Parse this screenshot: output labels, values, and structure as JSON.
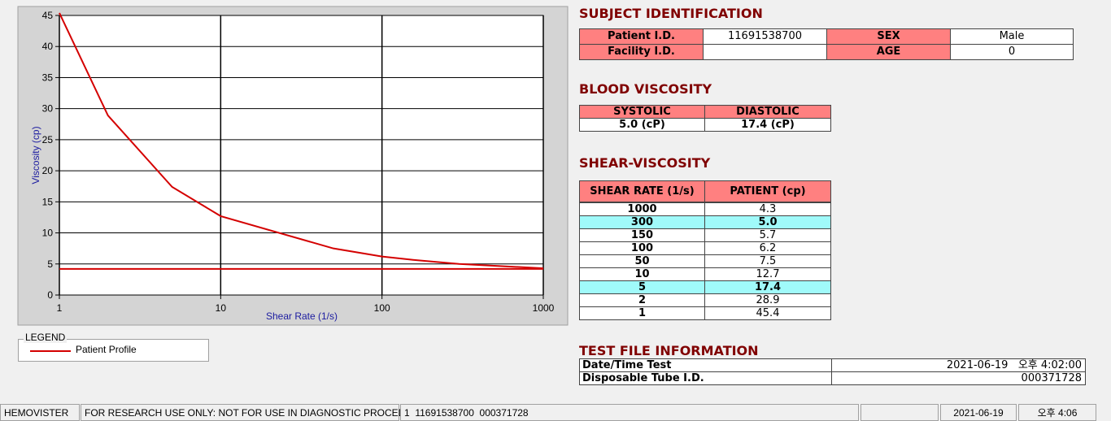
{
  "chart_data": {
    "type": "line",
    "xlabel": "Shear Rate (1/s)",
    "ylabel": "Viscosity (cp)",
    "xlim": [
      1,
      1000
    ],
    "xticks": [
      1,
      10,
      100,
      1000
    ],
    "xlog": true,
    "ylim": [
      0,
      45
    ],
    "yticks": [
      0,
      5,
      10,
      15,
      20,
      25,
      30,
      35,
      40,
      45
    ],
    "grid": true,
    "legend_title": "LEGEND",
    "series": [
      {
        "name": "Patient Profile",
        "color": "#d40000",
        "x": [
          1,
          2,
          5,
          10,
          50,
          100,
          150,
          300,
          1000
        ],
        "values": [
          45.4,
          28.9,
          17.4,
          12.7,
          7.5,
          6.2,
          5.7,
          5.0,
          4.3
        ]
      },
      {
        "color": "#d40000",
        "x": [
          1,
          1000
        ],
        "values": [
          4.2,
          4.2
        ]
      }
    ]
  },
  "subject": {
    "title": "SUBJECT IDENTIFICATION",
    "patient_label": "Patient I.D.",
    "patient_value": "11691538700",
    "sex_label": "SEX",
    "sex_value": "Male",
    "facility_label": "Facility I.D.",
    "age_label": "AGE",
    "age_value": "0"
  },
  "blood": {
    "title": "BLOOD VISCOSITY",
    "headers": [
      "SYSTOLIC",
      "DIASTOLIC"
    ],
    "values": [
      "5.0 (cP)",
      "17.4 (cP)"
    ]
  },
  "shear": {
    "title": "SHEAR-VISCOSITY",
    "headers": [
      "SHEAR RATE (1/s)",
      "PATIENT (cp)"
    ],
    "rows": [
      {
        "rate": "1000",
        "value": "4.3"
      },
      {
        "rate": "300",
        "value": "5.0",
        "highlight": true
      },
      {
        "rate": "150",
        "value": "5.7"
      },
      {
        "rate": "100",
        "value": "6.2"
      },
      {
        "rate": "50",
        "value": "7.5"
      },
      {
        "rate": "10",
        "value": "12.7"
      },
      {
        "rate": "5",
        "value": "17.4",
        "highlight": true
      },
      {
        "rate": "2",
        "value": "28.9"
      },
      {
        "rate": "1",
        "value": "45.4"
      }
    ]
  },
  "test_file": {
    "title": "TEST FILE INFORMATION",
    "rows": [
      [
        "Date/Time Test",
        "2021-06-19   오후 4:02:00"
      ],
      [
        "Disposable Tube I.D.",
        "000371728"
      ]
    ]
  },
  "status_bar": [
    "HEMOVISTER",
    "FOR RESEARCH USE ONLY: NOT FOR USE IN DIAGNOSTIC PROCEDURES",
    "1  11691538700  000371728",
    "2021-06-19",
    "오후 4:06"
  ]
}
